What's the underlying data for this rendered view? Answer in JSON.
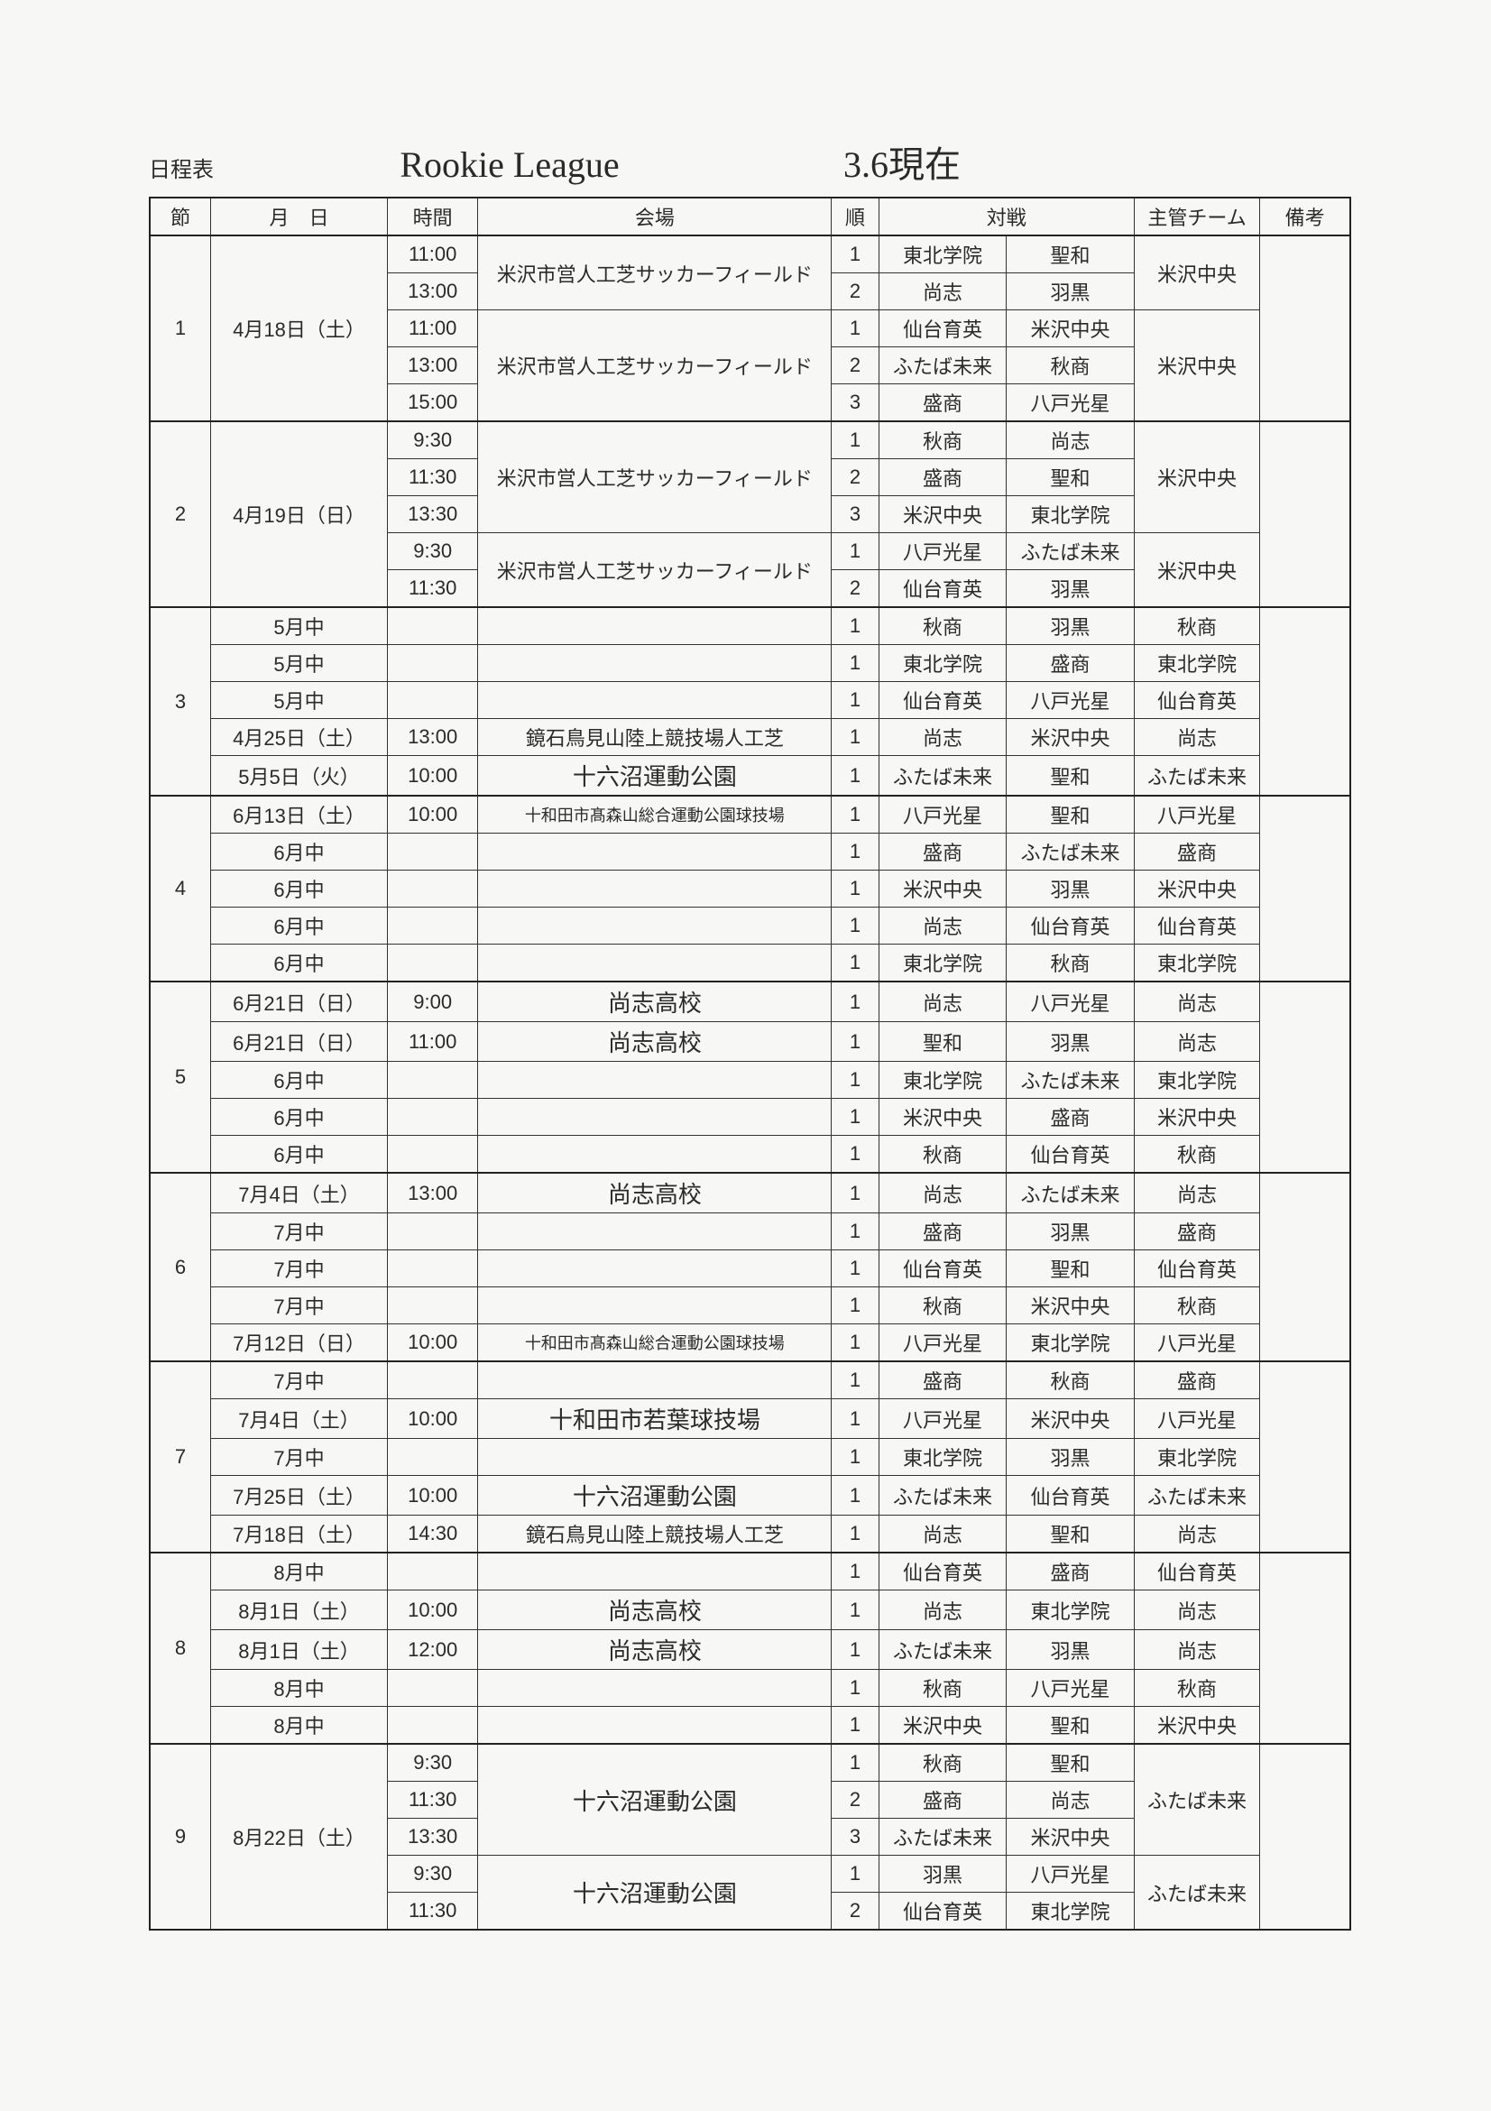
{
  "title_left": "日程表",
  "title_center": "Rookie League",
  "title_right": "3.6現在",
  "columns": {
    "setsu": "節",
    "date": "月　日",
    "time": "時間",
    "venue": "会場",
    "jun": "順",
    "taisen": "対戦",
    "team": "主管チーム",
    "biko": "備考"
  },
  "venues": {
    "yonezawa": "米沢市営人工芝サッカーフィールド",
    "kagami": "鏡石鳥見山陸上競技場人工芝",
    "juroku": "十六沼運動公園",
    "towada_taka": "十和田市髙森山総合運動公園球技場",
    "shoshi_hs": "尚志高校",
    "towada_wakaba": "十和田市若葉球技場"
  },
  "teams": {
    "tohoku_gakuin": "東北学院",
    "seiwa": "聖和",
    "shoshi": "尚志",
    "haguro": "羽黒",
    "sendai_ikuei": "仙台育英",
    "yonezawa_chuo": "米沢中央",
    "futaba_mirai": "ふたば未来",
    "akisho": "秋商",
    "morisho": "盛商",
    "hachinohe_kosei": "八戸光星"
  },
  "rows": [
    {
      "g": 1,
      "setsu": "1",
      "date": "4月18日（土）",
      "time": "11:00",
      "venue": "yonezawa",
      "venue_rs": 2,
      "jun": "1",
      "a": "tohoku_gakuin",
      "b": "seiwa",
      "team": "yonezawa_chuo",
      "team_rs": 2,
      "date_rs": 5,
      "setsu_rs": 5,
      "biko_rs": 5
    },
    {
      "g": 1,
      "time": "13:00",
      "jun": "2",
      "a": "shoshi",
      "b": "haguro"
    },
    {
      "g": 1,
      "time": "11:00",
      "venue": "yonezawa",
      "venue_rs": 3,
      "jun": "1",
      "a": "sendai_ikuei",
      "b": "yonezawa_chuo",
      "team": "yonezawa_chuo",
      "team_rs": 3
    },
    {
      "g": 1,
      "time": "13:00",
      "jun": "2",
      "a": "futaba_mirai",
      "b": "akisho"
    },
    {
      "g": 1,
      "time": "15:00",
      "jun": "3",
      "a": "morisho",
      "b": "hachinohe_kosei"
    },
    {
      "g": 2,
      "setsu": "2",
      "date": "4月19日（日）",
      "time": "9:30",
      "venue": "yonezawa",
      "venue_rs": 3,
      "jun": "1",
      "a": "akisho",
      "b": "shoshi",
      "team": "yonezawa_chuo",
      "team_rs": 3,
      "date_rs": 5,
      "setsu_rs": 5,
      "biko_rs": 5
    },
    {
      "g": 2,
      "time": "11:30",
      "jun": "2",
      "a": "morisho",
      "b": "seiwa"
    },
    {
      "g": 2,
      "time": "13:30",
      "jun": "3",
      "a": "yonezawa_chuo",
      "b": "tohoku_gakuin"
    },
    {
      "g": 2,
      "time": "9:30",
      "venue": "yonezawa",
      "venue_rs": 2,
      "jun": "1",
      "a": "hachinohe_kosei",
      "b": "futaba_mirai",
      "team": "yonezawa_chuo",
      "team_rs": 2
    },
    {
      "g": 2,
      "time": "11:30",
      "jun": "2",
      "a": "sendai_ikuei",
      "b": "haguro"
    },
    {
      "g": 3,
      "setsu": "3",
      "date": "5月中",
      "time": "",
      "venue": "",
      "jun": "1",
      "a": "akisho",
      "b": "haguro",
      "team": "akisho",
      "setsu_rs": 5,
      "biko_rs": 5
    },
    {
      "g": 3,
      "date": "5月中",
      "time": "",
      "venue": "",
      "jun": "1",
      "a": "tohoku_gakuin",
      "b": "morisho",
      "team": "tohoku_gakuin"
    },
    {
      "g": 3,
      "date": "5月中",
      "time": "",
      "venue": "",
      "jun": "1",
      "a": "sendai_ikuei",
      "b": "hachinohe_kosei",
      "team": "sendai_ikuei"
    },
    {
      "g": 3,
      "date": "4月25日（土）",
      "time": "13:00",
      "venue": "kagami",
      "jun": "1",
      "a": "shoshi",
      "b": "yonezawa_chuo",
      "team": "shoshi"
    },
    {
      "g": 3,
      "date": "5月5日（火）",
      "time": "10:00",
      "venue": "juroku",
      "venue_big": true,
      "jun": "1",
      "a": "futaba_mirai",
      "b": "seiwa",
      "team": "futaba_mirai"
    },
    {
      "g": 4,
      "setsu": "4",
      "date": "6月13日（土）",
      "time": "10:00",
      "venue": "towada_taka",
      "venue_small": true,
      "jun": "1",
      "a": "hachinohe_kosei",
      "b": "seiwa",
      "team": "hachinohe_kosei",
      "setsu_rs": 5,
      "biko_rs": 5
    },
    {
      "g": 4,
      "date": "6月中",
      "time": "",
      "venue": "",
      "jun": "1",
      "a": "morisho",
      "b": "futaba_mirai",
      "team": "morisho"
    },
    {
      "g": 4,
      "date": "6月中",
      "time": "",
      "venue": "",
      "jun": "1",
      "a": "yonezawa_chuo",
      "b": "haguro",
      "team": "yonezawa_chuo"
    },
    {
      "g": 4,
      "date": "6月中",
      "time": "",
      "venue": "",
      "jun": "1",
      "a": "shoshi",
      "b": "sendai_ikuei",
      "team": "sendai_ikuei"
    },
    {
      "g": 4,
      "date": "6月中",
      "time": "",
      "venue": "",
      "jun": "1",
      "a": "tohoku_gakuin",
      "b": "akisho",
      "team": "tohoku_gakuin"
    },
    {
      "g": 5,
      "setsu": "5",
      "date": "6月21日（日）",
      "time": "9:00",
      "venue": "shoshi_hs",
      "venue_big": true,
      "jun": "1",
      "a": "shoshi",
      "b": "hachinohe_kosei",
      "team": "shoshi",
      "setsu_rs": 5,
      "biko_rs": 5
    },
    {
      "g": 5,
      "date": "6月21日（日）",
      "time": "11:00",
      "venue": "shoshi_hs",
      "venue_big": true,
      "jun": "1",
      "a": "seiwa",
      "b": "haguro",
      "team": "shoshi"
    },
    {
      "g": 5,
      "date": "6月中",
      "time": "",
      "venue": "",
      "jun": "1",
      "a": "tohoku_gakuin",
      "b": "futaba_mirai",
      "team": "tohoku_gakuin"
    },
    {
      "g": 5,
      "date": "6月中",
      "time": "",
      "venue": "",
      "jun": "1",
      "a": "yonezawa_chuo",
      "b": "morisho",
      "team": "yonezawa_chuo"
    },
    {
      "g": 5,
      "date": "6月中",
      "time": "",
      "venue": "",
      "jun": "1",
      "a": "akisho",
      "b": "sendai_ikuei",
      "team": "akisho"
    },
    {
      "g": 6,
      "setsu": "6",
      "date": "7月4日（土）",
      "time": "13:00",
      "venue": "shoshi_hs",
      "venue_big": true,
      "jun": "1",
      "a": "shoshi",
      "b": "futaba_mirai",
      "team": "shoshi",
      "setsu_rs": 5,
      "biko_rs": 5
    },
    {
      "g": 6,
      "date": "7月中",
      "time": "",
      "venue": "",
      "jun": "1",
      "a": "morisho",
      "b": "haguro",
      "team": "morisho"
    },
    {
      "g": 6,
      "date": "7月中",
      "time": "",
      "venue": "",
      "jun": "1",
      "a": "sendai_ikuei",
      "b": "seiwa",
      "team": "sendai_ikuei"
    },
    {
      "g": 6,
      "date": "7月中",
      "time": "",
      "venue": "",
      "jun": "1",
      "a": "akisho",
      "b": "yonezawa_chuo",
      "team": "akisho"
    },
    {
      "g": 6,
      "date": "7月12日（日）",
      "time": "10:00",
      "venue": "towada_taka",
      "venue_small": true,
      "jun": "1",
      "a": "hachinohe_kosei",
      "b": "tohoku_gakuin",
      "team": "hachinohe_kosei"
    },
    {
      "g": 7,
      "setsu": "7",
      "date": "7月中",
      "time": "",
      "venue": "",
      "jun": "1",
      "a": "morisho",
      "b": "akisho",
      "team": "morisho",
      "setsu_rs": 5,
      "biko_rs": 5
    },
    {
      "g": 7,
      "date": "7月4日（土）",
      "time": "10:00",
      "venue": "towada_wakaba",
      "venue_big": true,
      "jun": "1",
      "a": "hachinohe_kosei",
      "b": "yonezawa_chuo",
      "team": "hachinohe_kosei"
    },
    {
      "g": 7,
      "date": "7月中",
      "time": "",
      "venue": "",
      "jun": "1",
      "a": "tohoku_gakuin",
      "b": "haguro",
      "team": "tohoku_gakuin"
    },
    {
      "g": 7,
      "date": "7月25日（土）",
      "time": "10:00",
      "venue": "juroku",
      "venue_big": true,
      "jun": "1",
      "a": "futaba_mirai",
      "b": "sendai_ikuei",
      "team": "futaba_mirai"
    },
    {
      "g": 7,
      "date": "7月18日（土）",
      "time": "14:30",
      "venue": "kagami",
      "jun": "1",
      "a": "shoshi",
      "b": "seiwa",
      "team": "shoshi"
    },
    {
      "g": 8,
      "setsu": "8",
      "date": "8月中",
      "time": "",
      "venue": "",
      "jun": "1",
      "a": "sendai_ikuei",
      "b": "morisho",
      "team": "sendai_ikuei",
      "setsu_rs": 5,
      "biko_rs": 5
    },
    {
      "g": 8,
      "date": "8月1日（土）",
      "time": "10:00",
      "venue": "shoshi_hs",
      "venue_big": true,
      "jun": "1",
      "a": "shoshi",
      "b": "tohoku_gakuin",
      "team": "shoshi"
    },
    {
      "g": 8,
      "date": "8月1日（土）",
      "time": "12:00",
      "venue": "shoshi_hs",
      "venue_big": true,
      "jun": "1",
      "a": "futaba_mirai",
      "b": "haguro",
      "team": "shoshi"
    },
    {
      "g": 8,
      "date": "8月中",
      "time": "",
      "venue": "",
      "jun": "1",
      "a": "akisho",
      "b": "hachinohe_kosei",
      "team": "akisho"
    },
    {
      "g": 8,
      "date": "8月中",
      "time": "",
      "venue": "",
      "jun": "1",
      "a": "yonezawa_chuo",
      "b": "seiwa",
      "team": "yonezawa_chuo"
    },
    {
      "g": 9,
      "setsu": "9",
      "date": "8月22日（土）",
      "time": "9:30",
      "venue": "juroku",
      "venue_big": true,
      "venue_rs": 3,
      "jun": "1",
      "a": "akisho",
      "b": "seiwa",
      "team": "futaba_mirai",
      "team_rs": 3,
      "date_rs": 5,
      "setsu_rs": 5,
      "biko_rs": 5
    },
    {
      "g": 9,
      "time": "11:30",
      "jun": "2",
      "a": "morisho",
      "b": "shoshi"
    },
    {
      "g": 9,
      "time": "13:30",
      "jun": "3",
      "a": "futaba_mirai",
      "b": "yonezawa_chuo"
    },
    {
      "g": 9,
      "time": "9:30",
      "venue": "juroku",
      "venue_big": true,
      "venue_rs": 2,
      "jun": "1",
      "a": "haguro",
      "b": "hachinohe_kosei",
      "team": "futaba_mirai",
      "team_rs": 2
    },
    {
      "g": 9,
      "time": "11:30",
      "jun": "2",
      "a": "sendai_ikuei",
      "b": "tohoku_gakuin"
    }
  ]
}
